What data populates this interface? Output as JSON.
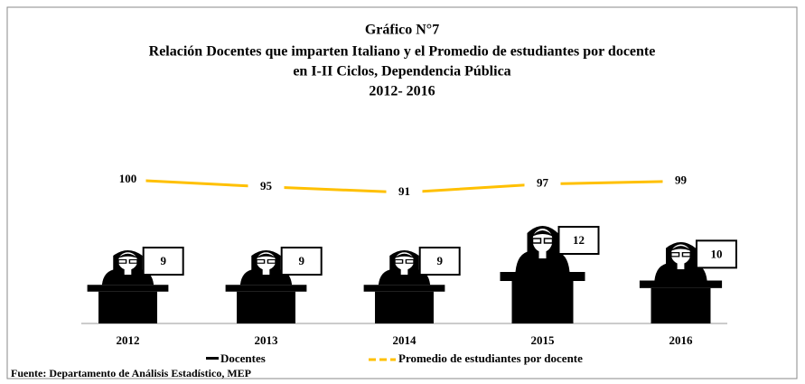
{
  "chart_data": {
    "type": "pictograph",
    "title": "Gráfico N°7",
    "subtitle": [
      "Relación Docentes que imparten Italiano y el Promedio de estudiantes por docente",
      "en I-II Ciclos, Dependencia Pública",
      "2012- 2016"
    ],
    "categories": [
      "2012",
      "2013",
      "2014",
      "2015",
      "2016"
    ],
    "series": [
      {
        "name": "Docentes",
        "color": "#000000",
        "values": [
          9,
          9,
          9,
          12,
          10
        ]
      },
      {
        "name": "Promedio de estudiantes por docente",
        "color": "#ffc000",
        "values": [
          100,
          95,
          91,
          97,
          99
        ]
      }
    ],
    "source": "Fuente: Departamento de Análisis Estadístico, MEP"
  }
}
